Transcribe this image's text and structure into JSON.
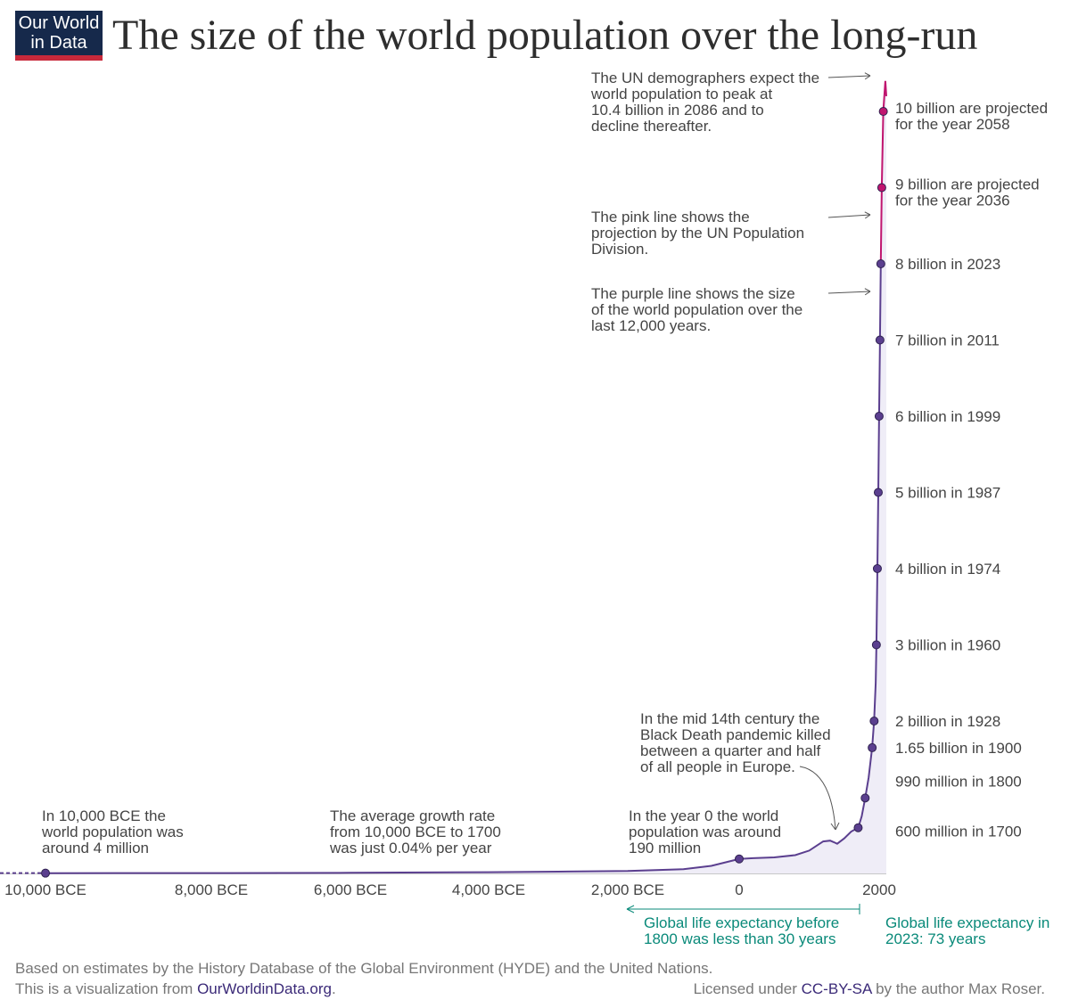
{
  "logo": {
    "line1": "Our World",
    "line2": "in Data"
  },
  "title": "The size of the world population over the long-run",
  "chart_data": {
    "type": "line",
    "title": "The size of the world population over the long-run",
    "xlabel": "",
    "ylabel": "",
    "xlim": [
      -10000,
      2100
    ],
    "ylim": [
      0,
      10.5
    ],
    "y_unit": "billion",
    "x_ticks": [
      {
        "value": -10000,
        "label": "10,000 BCE"
      },
      {
        "value": -8000,
        "label": "8,000 BCE"
      },
      {
        "value": -6000,
        "label": "6,000 BCE"
      },
      {
        "value": -4000,
        "label": "4,000 BCE"
      },
      {
        "value": -2000,
        "label": "2,000 BCE"
      },
      {
        "value": 0,
        "label": "0"
      },
      {
        "value": 2000,
        "label": "2000"
      }
    ],
    "grid": false,
    "colors": {
      "historical": "#5b3f8f",
      "projection": "#c0156f",
      "fill": "#efedf7",
      "annotation": "#0a8a7a"
    },
    "series": [
      {
        "key": "historical",
        "points": [
          [
            -10000,
            0.004
          ],
          [
            -8000,
            0.005
          ],
          [
            -6000,
            0.008
          ],
          [
            -4000,
            0.016
          ],
          [
            -3000,
            0.023
          ],
          [
            -2000,
            0.032
          ],
          [
            -1000,
            0.056
          ],
          [
            -500,
            0.1
          ],
          [
            0,
            0.19
          ],
          [
            200,
            0.2
          ],
          [
            500,
            0.21
          ],
          [
            800,
            0.24
          ],
          [
            1000,
            0.3
          ],
          [
            1100,
            0.36
          ],
          [
            1200,
            0.42
          ],
          [
            1300,
            0.43
          ],
          [
            1350,
            0.41
          ],
          [
            1400,
            0.39
          ],
          [
            1500,
            0.46
          ],
          [
            1600,
            0.55
          ],
          [
            1700,
            0.6
          ],
          [
            1750,
            0.75
          ],
          [
            1800,
            0.99
          ],
          [
            1850,
            1.26
          ],
          [
            1900,
            1.65
          ],
          [
            1928,
            2.0
          ],
          [
            1950,
            2.5
          ],
          [
            1960,
            3.0
          ],
          [
            1974,
            4.0
          ],
          [
            1987,
            5.0
          ],
          [
            1999,
            6.0
          ],
          [
            2011,
            7.0
          ],
          [
            2023,
            8.0
          ]
        ]
      },
      {
        "key": "projection",
        "points": [
          [
            2023,
            8.0
          ],
          [
            2036,
            9.0
          ],
          [
            2058,
            10.0
          ],
          [
            2086,
            10.4
          ],
          [
            2100,
            10.2
          ]
        ]
      }
    ],
    "milestones": [
      {
        "year": -10000,
        "value": 0.004
      },
      {
        "year": 0,
        "value": 0.19
      },
      {
        "year": 1700,
        "value": 0.6,
        "label": "600 million in 1700"
      },
      {
        "year": 1800,
        "value": 0.99,
        "label": "990 million in 1800"
      },
      {
        "year": 1900,
        "value": 1.65,
        "label": "1.65 billion in 1900"
      },
      {
        "year": 1928,
        "value": 2.0,
        "label": "2 billion in 1928"
      },
      {
        "year": 1960,
        "value": 3.0,
        "label": "3 billion in 1960"
      },
      {
        "year": 1974,
        "value": 4.0,
        "label": "4 billion in 1974"
      },
      {
        "year": 1987,
        "value": 5.0,
        "label": "5 billion in 1987"
      },
      {
        "year": 1999,
        "value": 6.0,
        "label": "6 billion in 1999"
      },
      {
        "year": 2011,
        "value": 7.0,
        "label": "7 billion in 2011"
      },
      {
        "year": 2023,
        "value": 8.0,
        "label": "8 billion in 2023"
      },
      {
        "year": 2036,
        "value": 9.0,
        "label": "9 billion are projected for the year 2036",
        "projected": true
      },
      {
        "year": 2058,
        "value": 10.0,
        "label": "10 billion are projected for the year 2058",
        "projected": true
      }
    ],
    "annotations": [
      {
        "key": "un-peak",
        "text": "The UN demographers expect the world population to peak at 10.4 billion in 2086 and to decline thereafter."
      },
      {
        "key": "pink-line",
        "text": "The pink line shows the projection by the UN Population Division."
      },
      {
        "key": "purple-line",
        "text": "The purple line shows the size of the world population over the last 12,000 years."
      },
      {
        "key": "bce-10000",
        "text": "In 10,000 BCE the world population was around 4 million"
      },
      {
        "key": "growth-rate",
        "text": "The average growth rate from 10,000 BCE to 1700 was just 0.04% per year"
      },
      {
        "key": "year-zero",
        "text": "In the year 0 the world population was around 190 million"
      },
      {
        "key": "black-death",
        "text": "In the mid 14th century the Black Death pandemic killed between a quarter and half of all people in Europe."
      },
      {
        "key": "life-exp-before",
        "text": "Global life expectancy before 1800 was less than 30 years"
      },
      {
        "key": "life-exp-2023",
        "text": "Global life expectancy in 2023: 73 years"
      }
    ]
  },
  "footer": {
    "source_line": "Based on estimates by the History Database of the Global Environment (HYDE) and the United Nations.",
    "viz_prefix": "This is a visualization from ",
    "viz_link": "OurWorldinData.org",
    "viz_suffix": ".",
    "license_prefix": "Licensed under ",
    "license_link": "CC-BY-SA",
    "license_suffix": " by the author Max Roser."
  }
}
